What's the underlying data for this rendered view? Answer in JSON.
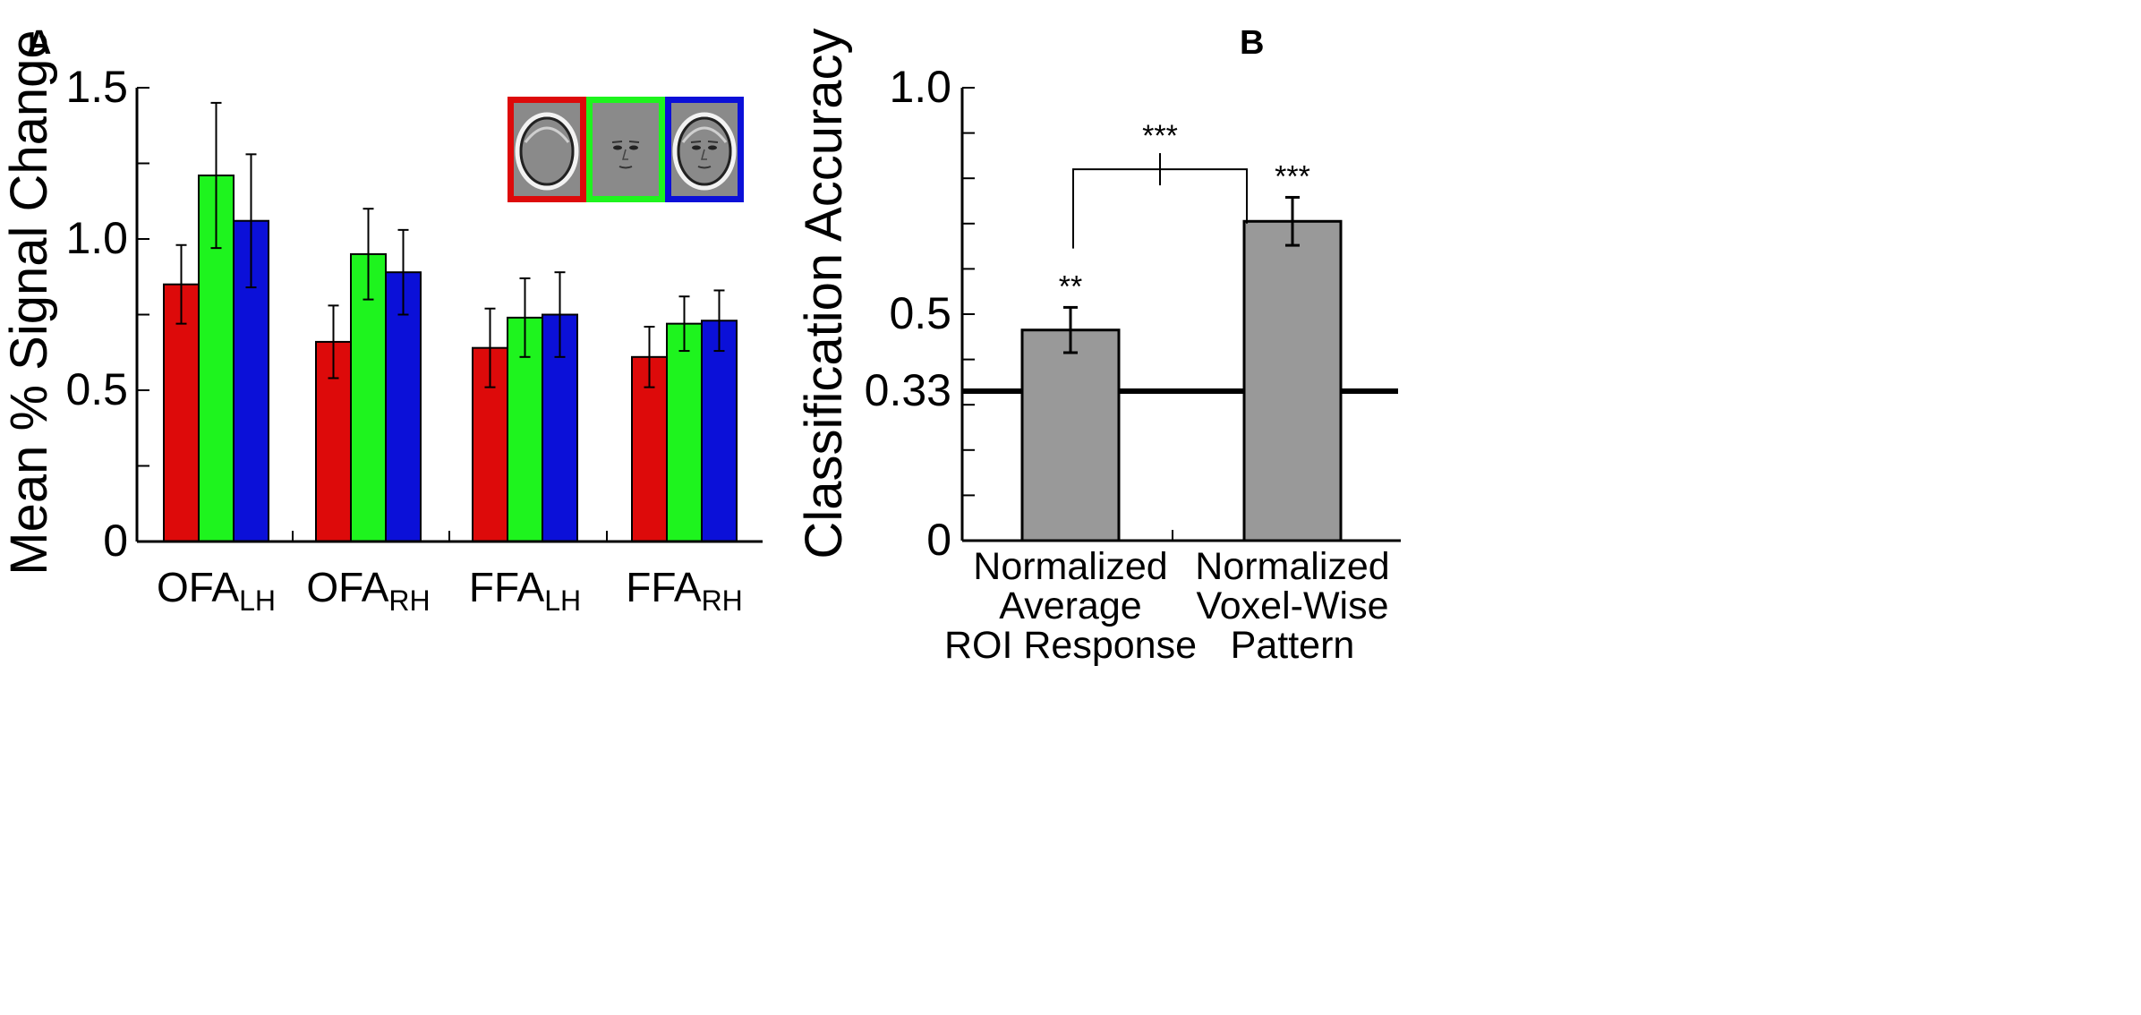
{
  "panels": {
    "a": {
      "label": "A"
    },
    "b": {
      "label": "B"
    }
  },
  "colors": {
    "full_outline": "#dd0a0a",
    "internal": "#1ef41e",
    "full_face": "#0b10d8",
    "gray_bar": "#999999",
    "axis": "#000000",
    "face_bg": "#8a8a8a"
  },
  "legend_icons": [
    "face-outline-only",
    "internal-features-only",
    "whole-face"
  ],
  "chart_data": [
    {
      "type": "bar",
      "ylabel": "Mean % Signal Change",
      "xlabel": "",
      "ylim": [
        0,
        1.5
      ],
      "yticks": [
        {
          "value": 0,
          "label": "0"
        },
        {
          "value": 0.5,
          "label": "0.5"
        },
        {
          "value": 1.0,
          "label": "1.0"
        },
        {
          "value": 1.5,
          "label": "1.5"
        }
      ],
      "minor_tick_step": 0.25,
      "categories": [
        {
          "base": "OFA",
          "sub": "LH"
        },
        {
          "base": "OFA",
          "sub": "RH"
        },
        {
          "base": "FFA",
          "sub": "LH"
        },
        {
          "base": "FFA",
          "sub": "RH"
        }
      ],
      "series": [
        {
          "name": "Face outline",
          "color": "#dd0a0a",
          "values": [
            0.85,
            0.66,
            0.64,
            0.61
          ],
          "errors": [
            0.13,
            0.12,
            0.13,
            0.1
          ]
        },
        {
          "name": "Internal features",
          "color": "#1ef41e",
          "values": [
            1.21,
            0.95,
            0.74,
            0.72
          ],
          "errors": [
            0.24,
            0.15,
            0.13,
            0.09
          ]
        },
        {
          "name": "Whole face",
          "color": "#0b10d8",
          "values": [
            1.06,
            0.89,
            0.75,
            0.73
          ],
          "errors": [
            0.22,
            0.14,
            0.14,
            0.1
          ]
        }
      ],
      "legend": "top-right"
    },
    {
      "type": "bar",
      "ylabel": "Classification Accuracy",
      "xlabel": "",
      "ylim": [
        0,
        1.0
      ],
      "yticks": [
        {
          "value": 0,
          "label": "0"
        },
        {
          "value": 0.33,
          "label": "0.33"
        },
        {
          "value": 0.5,
          "label": "0.5"
        },
        {
          "value": 1.0,
          "label": "1.0"
        }
      ],
      "minor_tick_step": 0.1,
      "categories": [
        [
          "Normalized",
          "Average",
          "ROI Response"
        ],
        [
          "Normalized",
          "Voxel-Wise",
          "Pattern"
        ]
      ],
      "values": [
        0.465,
        0.705
      ],
      "errors": [
        0.05,
        0.053
      ],
      "significance": [
        "**",
        "***"
      ],
      "comparison": {
        "between": [
          0,
          1
        ],
        "label": "***",
        "y": 0.82
      },
      "chance_level": 0.33
    }
  ]
}
